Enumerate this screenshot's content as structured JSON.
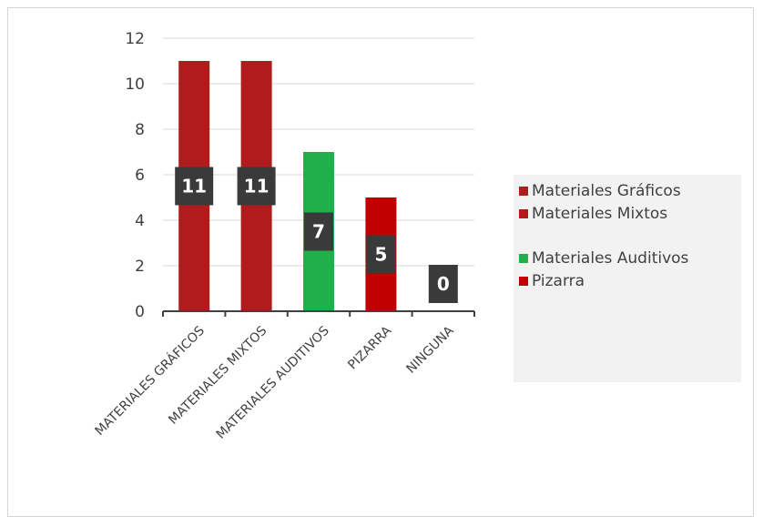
{
  "chart_data": {
    "type": "bar",
    "categories": [
      "MATERIALES GRÁFICOS",
      "MATERIALES MIXTOS",
      "MATERIALES AUDITIVOS",
      "PIZARRA",
      "NINGUNA"
    ],
    "values": [
      11,
      11,
      7,
      5,
      0
    ],
    "data_labels": [
      "11",
      "11",
      "7",
      "5",
      "0"
    ],
    "bar_colors": [
      "#b01c1c",
      "#b01c1c",
      "#1fb04c",
      "#c00000",
      "#b01c1c"
    ],
    "ylim": [
      0,
      12
    ],
    "yticks": [
      "0",
      "2",
      "4",
      "6",
      "8",
      "10",
      "12"
    ],
    "ytick_values": [
      0,
      2,
      4,
      6,
      8,
      10,
      12
    ],
    "grid": true,
    "legend_position": "right",
    "legend": [
      {
        "label": "Materiales Gráficos",
        "color": "#b01c1c"
      },
      {
        "label": "Materiales Mixtos",
        "color": "#b01c1c"
      },
      {
        "label": "Materiales Auditivos",
        "color": "#1fb04c"
      },
      {
        "label": "Pizarra",
        "color": "#c00000"
      }
    ],
    "title": "",
    "xlabel": "",
    "ylabel": ""
  }
}
